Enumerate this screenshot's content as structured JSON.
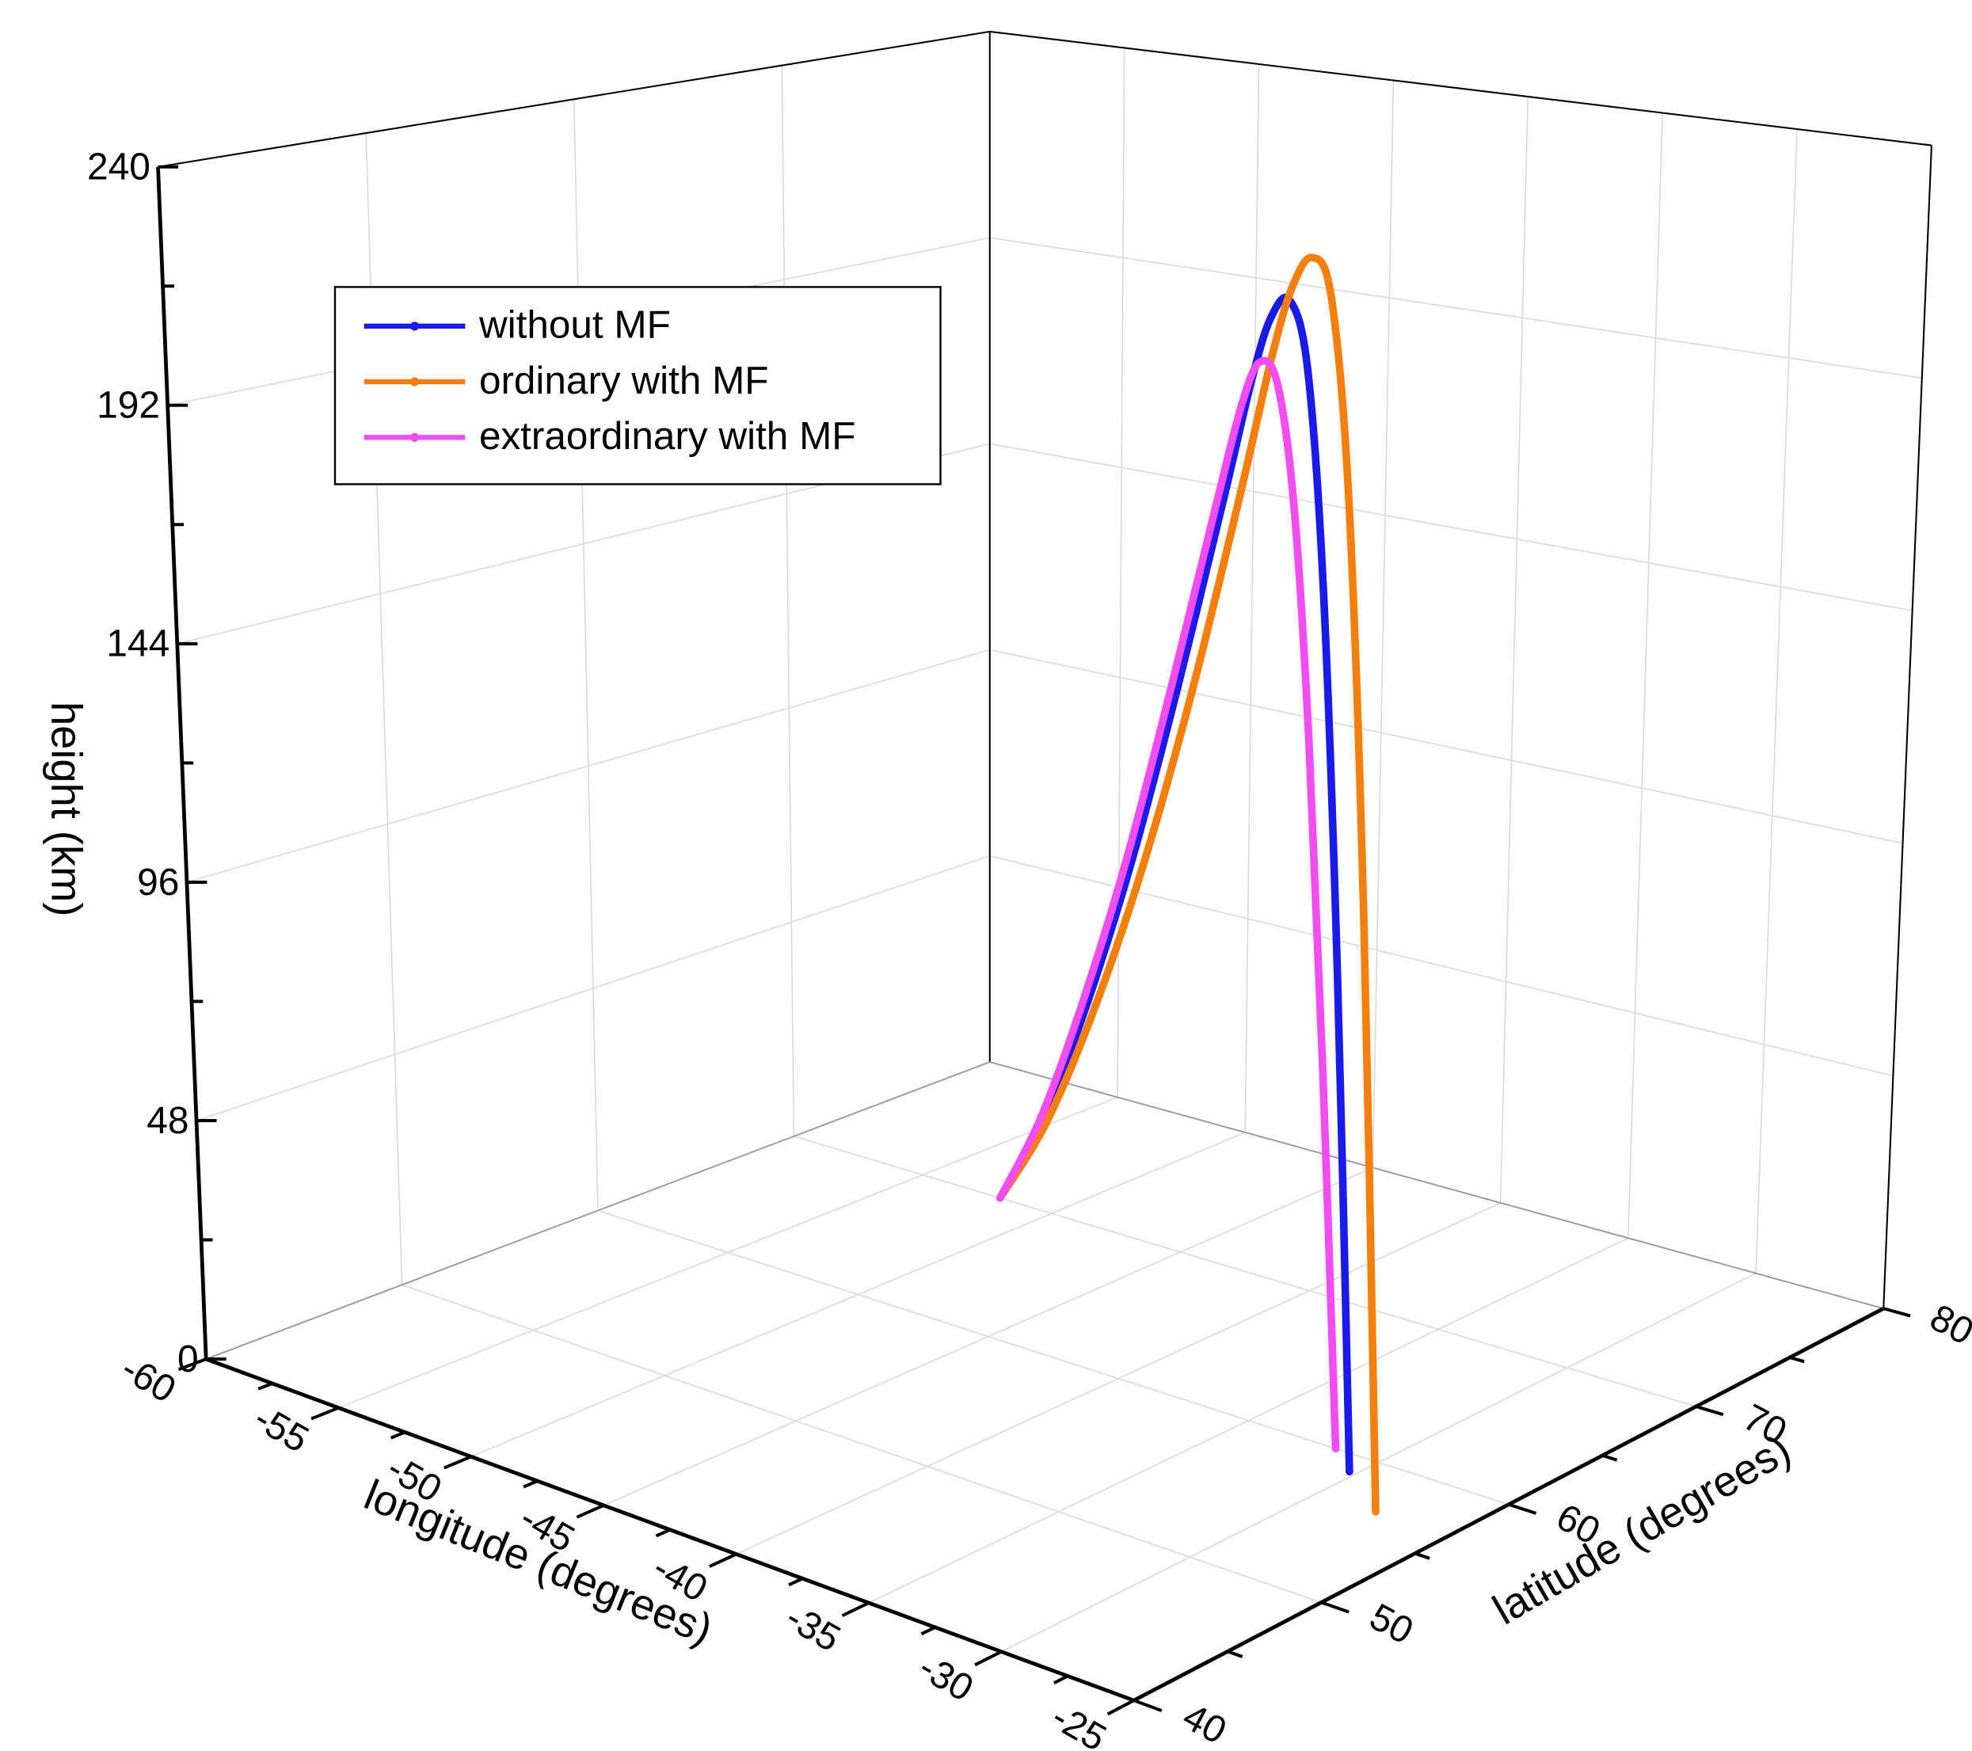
{
  "chart_data": {
    "type": "line3d",
    "xlabel": "longitude (degrees)",
    "ylabel": "latitude (degrees)",
    "zlabel": "height (km)",
    "xlim": [
      -60,
      -25
    ],
    "ylim": [
      40,
      80
    ],
    "zlim": [
      0,
      240
    ],
    "xticks": [
      -60,
      -55,
      -50,
      -45,
      -40,
      -35,
      -30,
      -25
    ],
    "yticks": [
      40,
      50,
      60,
      70,
      80
    ],
    "zticks": [
      0,
      48,
      96,
      144,
      192,
      240
    ],
    "grid": true,
    "legend": "upper left",
    "series": [
      {
        "name": "without MF",
        "color": "#1a1aeb",
        "x": [
          -52,
          -49.28,
          -46.56,
          -43.84,
          -41.13,
          -38.41,
          -36.78,
          -35.69,
          -34.6,
          -33.51,
          -32.43,
          -31.34,
          -30.25
        ],
        "y": [
          70,
          68.6,
          67.2,
          65.8,
          64.4,
          63,
          62.16,
          61.6,
          61.04,
          60.48,
          59.92,
          59.36,
          58.8
        ],
        "z": [
          0,
          24,
          55,
          91,
          132,
          176,
          203,
          217,
          222,
          210,
          168,
          95,
          0
        ]
      },
      {
        "name": "ordinary with MF",
        "color": "#f57f0a",
        "x": [
          -52,
          -48.98,
          -45.95,
          -42.93,
          -39.9,
          -36.88,
          -35.06,
          -33.85,
          -32.64,
          -31.43,
          -30.22,
          -29.01,
          -27.8
        ],
        "y": [
          70,
          68.35,
          66.7,
          65.05,
          63.4,
          61.75,
          60.76,
          60.1,
          59.44,
          58.78,
          58.12,
          57.46,
          56.8
        ],
        "z": [
          0,
          24,
          55,
          91,
          133,
          180,
          210,
          226,
          234,
          228,
          190,
          112,
          0
        ]
      },
      {
        "name": "extraordinary with MF",
        "color": "#f24cf2",
        "x": [
          -52,
          -49.46,
          -46.91,
          -44.37,
          -41.83,
          -39.28,
          -37.76,
          -36.74,
          -35.72,
          -34.7,
          -33.69,
          -32.67,
          -31.65
        ],
        "y": [
          70,
          68.75,
          67.5,
          66.25,
          65,
          63.75,
          63,
          62.5,
          62,
          61.5,
          61,
          60.5,
          60
        ],
        "z": [
          0,
          24,
          55,
          90,
          130,
          172,
          196,
          206,
          203,
          180,
          135,
          72,
          0
        ]
      }
    ]
  }
}
